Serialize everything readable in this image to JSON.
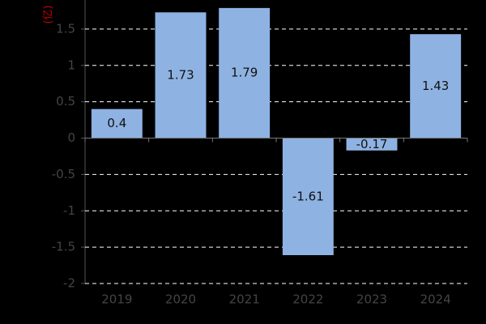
{
  "chart_data": {
    "type": "bar",
    "y_label": "(亿)",
    "categories": [
      "2019",
      "2020",
      "2021",
      "2022",
      "2023",
      "2024"
    ],
    "values": [
      0.4,
      1.73,
      1.79,
      -1.61,
      -0.17,
      1.43
    ],
    "color": "#8eb2e2",
    "ylim": [
      -2,
      1.9
    ],
    "yticks": [
      -2,
      -1.5,
      -1,
      -0.5,
      0,
      0.5,
      1,
      1.5
    ],
    "grid": true
  }
}
